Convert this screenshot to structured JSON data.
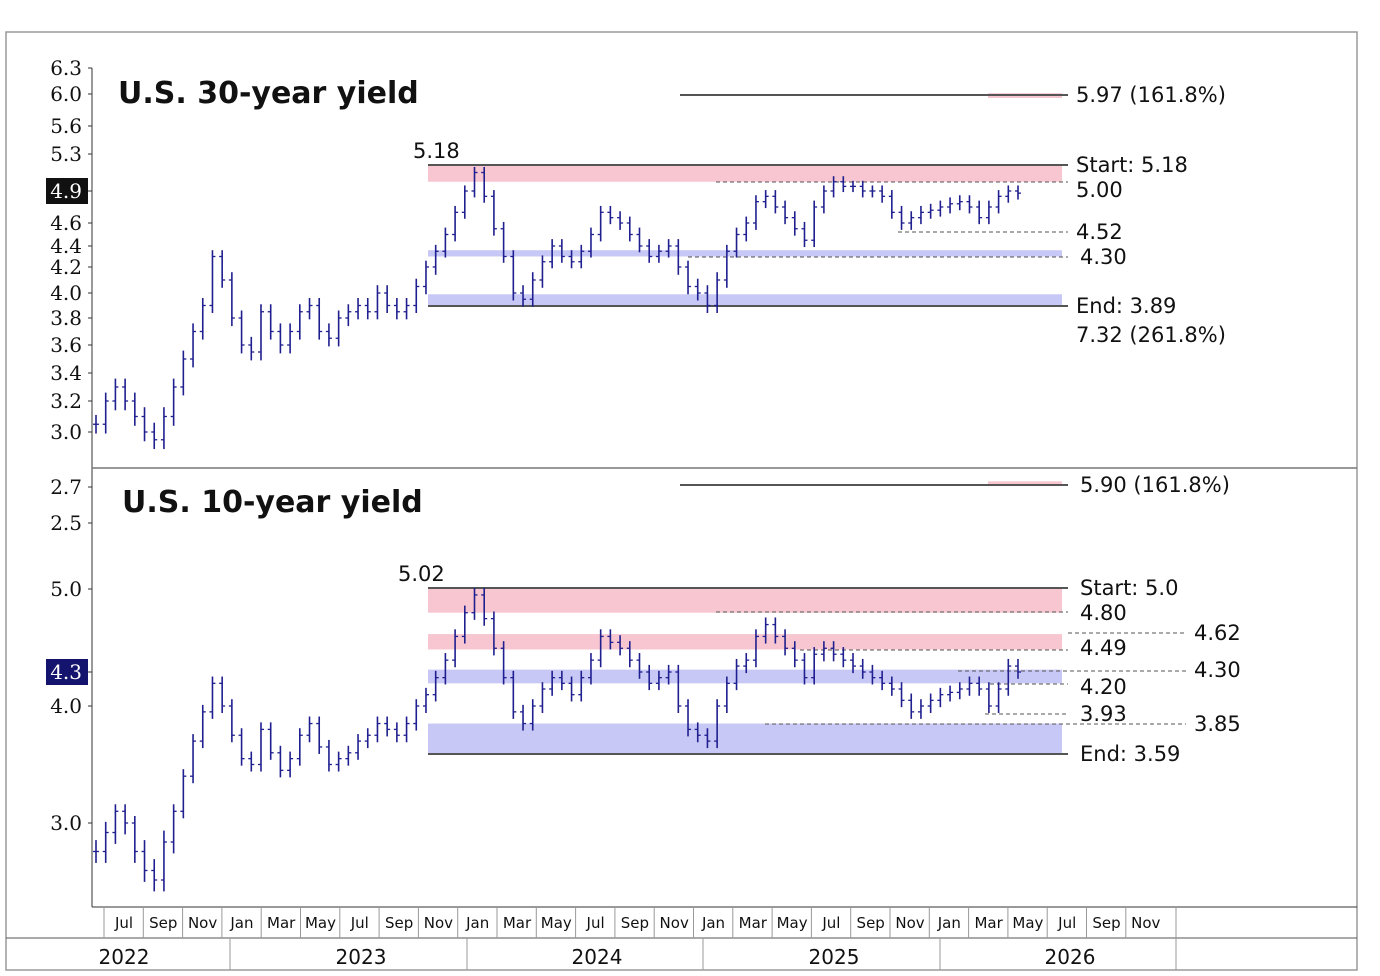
{
  "chart_data": [
    {
      "type": "bar",
      "title": "U.S. 30-year yield",
      "y_ticks": [
        "6.3",
        "6.0",
        "5.6",
        "5.3",
        "4.9",
        "4.6",
        "4.4",
        "4.2",
        "4.0",
        "3.8",
        "3.6",
        "3.4",
        "3.2",
        "3.0"
      ],
      "current_value_label": "4.9",
      "peak_label": "5.18",
      "annotations": [
        "5.97 (161.8%)",
        "Start: 5.18",
        "5.00",
        "4.52",
        "4.30",
        "End: 3.89",
        "7.32 (261.8%)"
      ],
      "bands": [
        {
          "color": "#f7c6d0",
          "y_range": [
            5.0,
            5.18
          ]
        },
        {
          "color": "#c8c8f7",
          "y_range": [
            4.3,
            4.36
          ]
        },
        {
          "color": "#c8c8f7",
          "y_range": [
            3.89,
            3.99
          ]
        },
        {
          "color": "#f7c6d0",
          "y_range": [
            5.95,
            6.01
          ]
        }
      ],
      "series": [
        {
          "values": [
            3.05,
            3.2,
            3.3,
            3.2,
            3.1,
            3.0,
            2.95,
            3.1,
            3.3,
            3.5,
            3.7,
            3.9,
            4.3,
            4.1,
            3.8,
            3.6,
            3.55,
            3.85,
            3.7,
            3.6,
            3.7,
            3.85,
            3.9,
            3.7,
            3.65,
            3.8,
            3.85,
            3.9,
            3.85,
            4.0,
            3.9,
            3.85,
            3.9,
            4.05,
            4.2,
            4.35,
            4.5,
            4.7,
            4.9,
            5.1,
            4.85,
            4.55,
            4.3,
            4.0,
            3.95,
            4.1,
            4.25,
            4.4,
            4.3,
            4.25,
            4.35,
            4.5,
            4.7,
            4.65,
            4.6,
            4.5,
            4.4,
            4.3,
            4.35,
            4.4,
            4.2,
            4.05,
            4.0,
            3.9,
            4.1,
            4.35,
            4.5,
            4.6,
            4.8,
            4.85,
            4.75,
            4.65,
            4.55,
            4.45,
            4.75,
            4.9,
            5.0,
            4.95,
            4.95,
            4.9,
            4.9,
            4.85,
            4.7,
            4.6,
            4.65,
            4.7,
            4.72,
            4.75,
            4.78,
            4.8,
            4.75,
            4.65,
            4.75,
            4.85,
            4.9,
            4.88
          ]
        }
      ]
    },
    {
      "type": "bar",
      "title": "U.S. 10-year yield",
      "y_ticks": [
        "2.7",
        "2.5",
        "5.0",
        "4.3",
        "4.0",
        "3.0"
      ],
      "current_value_label": "4.3",
      "peak_label": "5.02",
      "annotations": [
        "5.90 (161.8%)",
        "Start: 5.0",
        "4.80",
        "4.62",
        "4.49",
        "4.30",
        "4.20",
        "3.93",
        "3.85",
        "End: 3.59"
      ],
      "bands": [
        {
          "color": "#f7c6d0",
          "y_range": [
            4.8,
            5.0
          ]
        },
        {
          "color": "#f7c6d0",
          "y_range": [
            4.49,
            4.62
          ]
        },
        {
          "color": "#c8c8f7",
          "y_range": [
            4.2,
            4.32
          ]
        },
        {
          "color": "#c8c8f7",
          "y_range": [
            3.59,
            3.85
          ]
        },
        {
          "color": "#f7c6d0",
          "y_range": [
            5.88,
            5.92
          ]
        }
      ],
      "series": [
        {
          "values": [
            2.85,
            2.95,
            3.1,
            3.0,
            2.85,
            2.75,
            2.7,
            2.9,
            3.1,
            3.4,
            3.7,
            3.95,
            4.2,
            4.0,
            3.75,
            3.55,
            3.5,
            3.8,
            3.6,
            3.45,
            3.55,
            3.75,
            3.85,
            3.65,
            3.5,
            3.55,
            3.6,
            3.7,
            3.75,
            3.85,
            3.8,
            3.75,
            3.85,
            4.0,
            4.1,
            4.25,
            4.4,
            4.6,
            4.8,
            4.95,
            4.75,
            4.5,
            4.25,
            3.95,
            3.85,
            4.0,
            4.15,
            4.25,
            4.2,
            4.1,
            4.25,
            4.4,
            4.6,
            4.55,
            4.5,
            4.4,
            4.3,
            4.2,
            4.25,
            4.3,
            4.0,
            3.8,
            3.75,
            3.7,
            4.0,
            4.2,
            4.35,
            4.4,
            4.6,
            4.7,
            4.6,
            4.5,
            4.4,
            4.25,
            4.45,
            4.5,
            4.45,
            4.4,
            4.35,
            4.3,
            4.25,
            4.2,
            4.15,
            4.05,
            3.95,
            4.0,
            4.05,
            4.1,
            4.12,
            4.15,
            4.2,
            4.15,
            4.0,
            4.15,
            4.35,
            4.3
          ]
        }
      ]
    }
  ],
  "x_axis": {
    "months": [
      "Jul",
      "Sep",
      "Nov",
      "Jan",
      "Mar",
      "May",
      "Jul",
      "Sep",
      "Nov",
      "Jan",
      "Mar",
      "May",
      "Jul",
      "Sep",
      "Nov",
      "Jan",
      "Mar",
      "May",
      "Jul",
      "Sep",
      "Nov",
      "Jan",
      "Mar",
      "May",
      "Jul",
      "Sep",
      "Nov"
    ],
    "years": [
      "2022",
      "2023",
      "2024",
      "2025",
      "2026"
    ]
  },
  "colors": {
    "series": "#1f1f8f",
    "pink_band": "#f7c6d0",
    "blue_band": "#c8c8f7",
    "label_30y": "#111111",
    "label_10y": "#14146e"
  }
}
